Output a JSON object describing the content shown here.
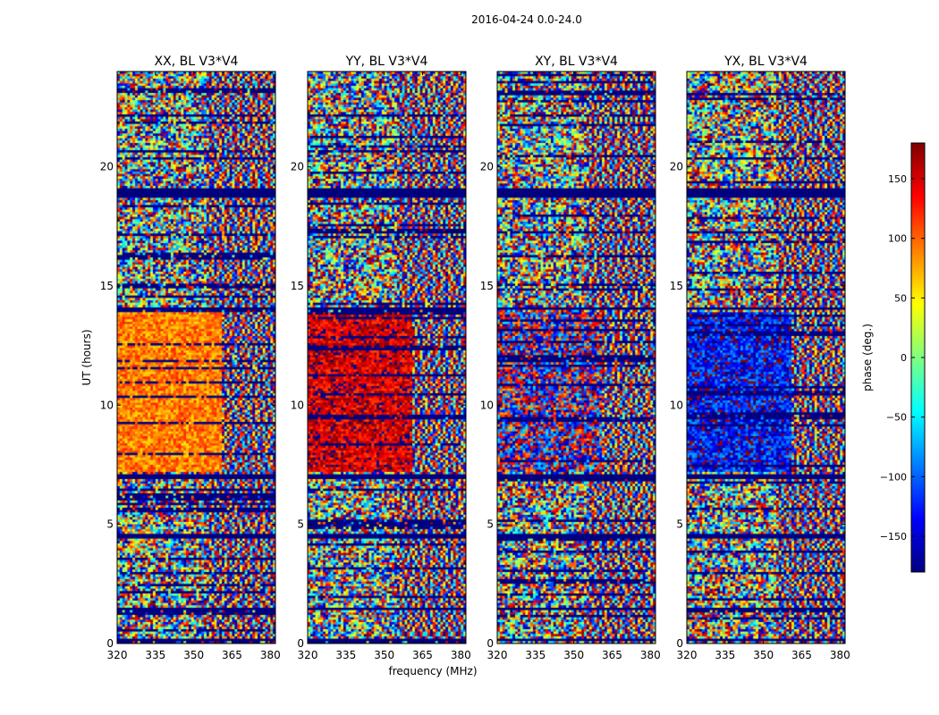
{
  "chart_data": {
    "type": "heatmap",
    "suptitle": "2016-04-24 0.0-24.0",
    "xlabel": "frequency (MHz)",
    "ylabel": "UT (hours)",
    "xlim": [
      320,
      382
    ],
    "ylim": [
      0,
      24
    ],
    "xticks": [
      320,
      335,
      350,
      365,
      380
    ],
    "yticks": [
      0,
      5,
      10,
      15,
      20
    ],
    "panels": [
      {
        "title": "XX, BL V3*V4",
        "pol": "XX",
        "band_phase": 90,
        "band_spread": 35,
        "band_freq_end": 361
      },
      {
        "title": "YY, BL V3*V4",
        "pol": "YY",
        "band_phase": 150,
        "band_spread": 40,
        "band_freq_end": 361
      },
      {
        "title": "XY, BL V3*V4",
        "pol": "XY",
        "band_phase": -170,
        "band_spread": 120,
        "band_freq_end": 361
      },
      {
        "title": "YX, BL V3*V4",
        "pol": "YX",
        "band_phase": -135,
        "band_spread": 60,
        "band_freq_end": 361
      }
    ],
    "flagged_time_ranges_hours": [
      [
        18.7,
        19.1
      ],
      [
        14.0,
        14.1
      ],
      [
        6.9,
        7.1
      ],
      [
        4.4,
        4.6
      ],
      [
        1.4,
        1.5
      ],
      [
        0.1,
        0.2
      ]
    ],
    "band_time_range_hours": [
      7.2,
      13.9
    ],
    "colorbar": {
      "label": "phase (deg.)",
      "range": [
        -180,
        180
      ],
      "ticks": [
        150,
        100,
        50,
        0,
        -50,
        -100,
        -150
      ],
      "colormap": [
        "#00007f",
        "#0000ff",
        "#007fff",
        "#00ffff",
        "#7fff7f",
        "#ffff00",
        "#ff7f00",
        "#ff0000",
        "#7f0000"
      ]
    }
  }
}
